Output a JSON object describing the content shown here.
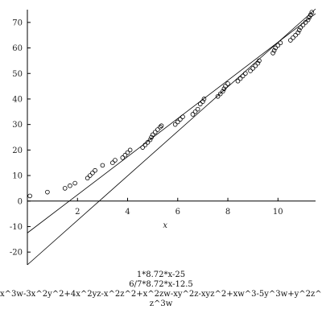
{
  "chart_data": {
    "type": "scatter",
    "xlabel": "x",
    "ylabel": "",
    "xlim": [
      0,
      11.5
    ],
    "ylim": [
      -25,
      75
    ],
    "x_ticks": [
      2,
      4,
      6,
      8,
      10
    ],
    "y_ticks": [
      -20,
      -10,
      0,
      10,
      20,
      30,
      40,
      50,
      60,
      70
    ],
    "grid": false,
    "series": [
      {
        "kind": "points",
        "x": [
          0.1,
          0.8,
          1.5,
          1.7,
          1.9,
          2.4,
          2.5,
          2.6,
          2.7,
          3.0,
          3.4,
          3.5,
          3.8,
          3.9,
          4.0,
          4.1,
          4.6,
          4.7,
          4.8,
          4.9,
          4.95,
          5.0,
          5.1,
          5.2,
          5.3,
          5.35,
          5.9,
          6.0,
          6.1,
          6.2,
          6.6,
          6.7,
          6.8,
          6.9,
          7.0,
          7.05,
          7.6,
          7.7,
          7.8,
          7.85,
          7.9,
          8.0,
          8.4,
          8.5,
          8.6,
          8.7,
          8.9,
          9.0,
          9.1,
          9.2,
          9.25,
          9.8,
          9.85,
          9.9,
          10.0,
          10.1,
          10.5,
          10.6,
          10.7,
          10.8,
          10.85,
          10.9,
          11.0,
          11.1,
          11.2,
          11.25,
          11.3,
          11.35
        ],
        "y": [
          2,
          3.5,
          5,
          6,
          7,
          9,
          10,
          11,
          12,
          14,
          15,
          16,
          17,
          18,
          19,
          20,
          21,
          22,
          23,
          24,
          25,
          26,
          27,
          28,
          29,
          29.5,
          30,
          31,
          32,
          33,
          34,
          35,
          36,
          38,
          39,
          40,
          41,
          42,
          43,
          44,
          45,
          46,
          47,
          48,
          49,
          50,
          51,
          52,
          53,
          54,
          55,
          58,
          59,
          60,
          61,
          62,
          63,
          64,
          65,
          66,
          67,
          68,
          69,
          70,
          71,
          72,
          73,
          74
        ]
      },
      {
        "kind": "line",
        "name": "1*8.72*x-25",
        "x": [
          0,
          11.5
        ],
        "y": [
          -25,
          75.28
        ]
      },
      {
        "kind": "line",
        "name": "6/7*8.72*x-12.5",
        "x": [
          0,
          11.5
        ],
        "y": [
          -12.5,
          73.45
        ]
      }
    ]
  },
  "legend": {
    "line1": "1*8.72*x-25",
    "line2": "6/7*8.72*x-12.5",
    "line3": "x^3w-3x^2y^2+4x^2yz-x^2z^2+x^2zw-xy^2z-xyz^2+xw^3-5y^3w+y^2z^2+",
    "line4": "z^3w"
  }
}
